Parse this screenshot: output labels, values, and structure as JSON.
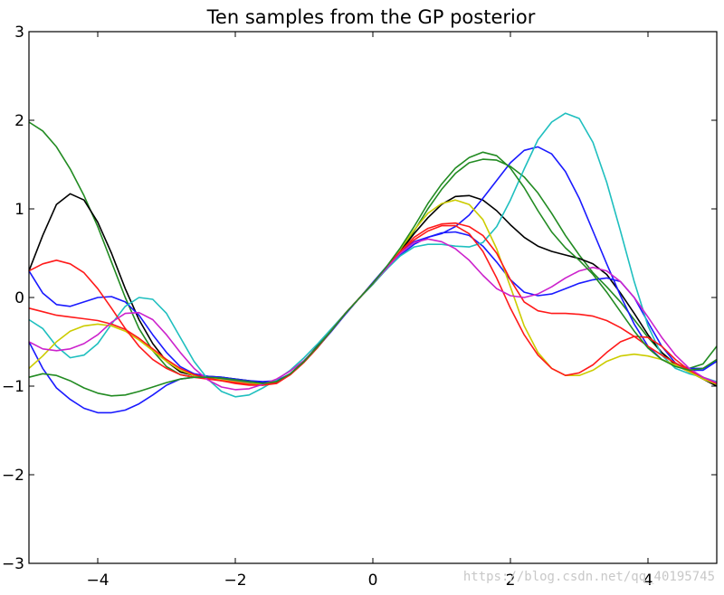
{
  "chart_data": {
    "type": "line",
    "title": "Ten samples from the GP posterior",
    "xlabel": "",
    "ylabel": "",
    "xlim": [
      -5,
      5
    ],
    "ylim": [
      -3,
      3
    ],
    "xticks": [
      -4,
      -2,
      0,
      2,
      4
    ],
    "yticks": [
      -3,
      -2,
      -1,
      0,
      1,
      2,
      3
    ],
    "xtick_labels": [
      "−4",
      "−2",
      "0",
      "2",
      "4"
    ],
    "ytick_labels": [
      "−3",
      "−2",
      "−1",
      "0",
      "1",
      "2",
      "3"
    ],
    "grid": false,
    "legend": "none",
    "x": [
      -5.0,
      -4.8,
      -4.6,
      -4.4,
      -4.2,
      -4.0,
      -3.8,
      -3.6,
      -3.4,
      -3.2,
      -3.0,
      -2.8,
      -2.6,
      -2.4,
      -2.2,
      -2.0,
      -1.8,
      -1.6,
      -1.4,
      -1.2,
      -1.0,
      -0.8,
      -0.6,
      -0.4,
      -0.2,
      0.0,
      0.2,
      0.4,
      0.6,
      0.8,
      1.0,
      1.2,
      1.4,
      1.6,
      1.8,
      2.0,
      2.2,
      2.4,
      2.6,
      2.8,
      3.0,
      3.2,
      3.4,
      3.6,
      3.8,
      4.0,
      4.2,
      4.4,
      4.6,
      4.8,
      5.0
    ],
    "series": [
      {
        "color": "#228b22",
        "values": [
          1.98,
          1.88,
          1.7,
          1.45,
          1.15,
          0.8,
          0.4,
          0.0,
          -0.35,
          -0.6,
          -0.78,
          -0.87,
          -0.9,
          -0.9,
          -0.91,
          -0.93,
          -0.95,
          -0.97,
          -0.95,
          -0.87,
          -0.73,
          -0.56,
          -0.37,
          -0.18,
          -0.01,
          0.15,
          0.32,
          0.52,
          0.75,
          1.0,
          1.22,
          1.4,
          1.52,
          1.56,
          1.55,
          1.48,
          1.36,
          1.18,
          0.95,
          0.7,
          0.48,
          0.28,
          0.12,
          -0.05,
          -0.25,
          -0.45,
          -0.62,
          -0.75,
          -0.8,
          -0.75,
          -0.55
        ]
      },
      {
        "color": "#000000",
        "values": [
          0.3,
          0.7,
          1.05,
          1.17,
          1.1,
          0.85,
          0.5,
          0.1,
          -0.25,
          -0.52,
          -0.72,
          -0.84,
          -0.88,
          -0.89,
          -0.9,
          -0.92,
          -0.94,
          -0.96,
          -0.95,
          -0.86,
          -0.72,
          -0.54,
          -0.36,
          -0.18,
          -0.01,
          0.15,
          0.33,
          0.52,
          0.72,
          0.9,
          1.05,
          1.14,
          1.15,
          1.1,
          0.98,
          0.82,
          0.68,
          0.58,
          0.52,
          0.48,
          0.44,
          0.38,
          0.26,
          0.05,
          -0.18,
          -0.42,
          -0.62,
          -0.76,
          -0.84,
          -0.92,
          -1.0
        ]
      },
      {
        "color": "#1a1aff",
        "values": [
          0.3,
          0.05,
          -0.08,
          -0.1,
          -0.05,
          0.0,
          0.01,
          -0.05,
          -0.2,
          -0.42,
          -0.62,
          -0.78,
          -0.86,
          -0.89,
          -0.9,
          -0.92,
          -0.94,
          -0.95,
          -0.94,
          -0.86,
          -0.73,
          -0.56,
          -0.38,
          -0.19,
          -0.01,
          0.16,
          0.32,
          0.48,
          0.6,
          0.68,
          0.73,
          0.74,
          0.7,
          0.58,
          0.4,
          0.2,
          0.06,
          0.02,
          0.04,
          0.1,
          0.16,
          0.2,
          0.22,
          0.18,
          0.0,
          -0.28,
          -0.55,
          -0.74,
          -0.82,
          -0.82,
          -0.72
        ]
      },
      {
        "color": "#1a1aff",
        "values": [
          -0.5,
          -0.8,
          -1.02,
          -1.15,
          -1.25,
          -1.3,
          -1.3,
          -1.27,
          -1.2,
          -1.1,
          -0.99,
          -0.92,
          -0.9,
          -0.91,
          -0.92,
          -0.94,
          -0.96,
          -0.97,
          -0.95,
          -0.86,
          -0.72,
          -0.55,
          -0.37,
          -0.19,
          -0.01,
          0.17,
          0.35,
          0.52,
          0.63,
          0.68,
          0.72,
          0.8,
          0.93,
          1.12,
          1.32,
          1.52,
          1.66,
          1.7,
          1.62,
          1.42,
          1.12,
          0.75,
          0.38,
          0.02,
          -0.3,
          -0.55,
          -0.7,
          -0.76,
          -0.8,
          -0.8,
          -0.72
        ]
      },
      {
        "color": "#1fbfbf",
        "values": [
          -0.25,
          -0.35,
          -0.55,
          -0.68,
          -0.65,
          -0.52,
          -0.3,
          -0.1,
          0.0,
          -0.02,
          -0.18,
          -0.45,
          -0.72,
          -0.92,
          -1.06,
          -1.12,
          -1.1,
          -1.02,
          -0.93,
          -0.82,
          -0.68,
          -0.52,
          -0.35,
          -0.18,
          -0.01,
          0.15,
          0.32,
          0.47,
          0.57,
          0.6,
          0.6,
          0.58,
          0.57,
          0.62,
          0.8,
          1.1,
          1.45,
          1.78,
          1.98,
          2.08,
          2.02,
          1.75,
          1.3,
          0.75,
          0.18,
          -0.32,
          -0.65,
          -0.8,
          -0.86,
          -0.9,
          -0.95
        ]
      },
      {
        "color": "#cccc00",
        "values": [
          -0.8,
          -0.66,
          -0.5,
          -0.38,
          -0.32,
          -0.3,
          -0.32,
          -0.38,
          -0.48,
          -0.6,
          -0.72,
          -0.82,
          -0.88,
          -0.91,
          -0.93,
          -0.95,
          -0.97,
          -0.98,
          -0.96,
          -0.87,
          -0.73,
          -0.56,
          -0.37,
          -0.18,
          -0.01,
          0.16,
          0.34,
          0.55,
          0.76,
          0.95,
          1.06,
          1.1,
          1.05,
          0.88,
          0.55,
          0.12,
          -0.32,
          -0.62,
          -0.8,
          -0.88,
          -0.88,
          -0.82,
          -0.72,
          -0.66,
          -0.64,
          -0.66,
          -0.7,
          -0.76,
          -0.84,
          -0.92,
          -0.98
        ]
      },
      {
        "color": "#ff1a1a",
        "values": [
          0.3,
          0.38,
          0.42,
          0.38,
          0.28,
          0.1,
          -0.12,
          -0.35,
          -0.55,
          -0.7,
          -0.8,
          -0.87,
          -0.9,
          -0.92,
          -0.94,
          -0.97,
          -0.99,
          -0.99,
          -0.96,
          -0.87,
          -0.73,
          -0.56,
          -0.37,
          -0.18,
          -0.01,
          0.16,
          0.34,
          0.52,
          0.65,
          0.75,
          0.81,
          0.81,
          0.72,
          0.52,
          0.22,
          -0.12,
          -0.42,
          -0.65,
          -0.8,
          -0.88,
          -0.85,
          -0.76,
          -0.62,
          -0.5,
          -0.44,
          -0.45,
          -0.55,
          -0.7,
          -0.82,
          -0.9,
          -0.97
        ]
      },
      {
        "color": "#ff1a1a",
        "values": [
          -0.12,
          -0.16,
          -0.2,
          -0.22,
          -0.24,
          -0.26,
          -0.3,
          -0.36,
          -0.46,
          -0.58,
          -0.7,
          -0.8,
          -0.87,
          -0.91,
          -0.94,
          -0.96,
          -0.98,
          -0.99,
          -0.97,
          -0.87,
          -0.73,
          -0.56,
          -0.37,
          -0.18,
          -0.01,
          0.16,
          0.34,
          0.52,
          0.68,
          0.78,
          0.83,
          0.84,
          0.8,
          0.7,
          0.5,
          0.2,
          -0.05,
          -0.15,
          -0.18,
          -0.18,
          -0.19,
          -0.21,
          -0.26,
          -0.34,
          -0.44,
          -0.55,
          -0.65,
          -0.74,
          -0.82,
          -0.9,
          -0.97
        ]
      },
      {
        "color": "#cc22cc",
        "values": [
          -0.5,
          -0.58,
          -0.6,
          -0.58,
          -0.52,
          -0.42,
          -0.28,
          -0.18,
          -0.17,
          -0.25,
          -0.42,
          -0.62,
          -0.8,
          -0.93,
          -1.01,
          -1.04,
          -1.03,
          -0.98,
          -0.92,
          -0.83,
          -0.71,
          -0.55,
          -0.37,
          -0.18,
          -0.01,
          0.16,
          0.33,
          0.5,
          0.62,
          0.66,
          0.63,
          0.55,
          0.42,
          0.25,
          0.1,
          0.02,
          0.0,
          0.04,
          0.12,
          0.22,
          0.3,
          0.34,
          0.3,
          0.18,
          0.0,
          -0.22,
          -0.45,
          -0.65,
          -0.8,
          -0.9,
          -0.96
        ]
      },
      {
        "color": "#228b22",
        "values": [
          -0.9,
          -0.86,
          -0.88,
          -0.94,
          -1.02,
          -1.08,
          -1.11,
          -1.1,
          -1.06,
          -1.01,
          -0.96,
          -0.92,
          -0.9,
          -0.9,
          -0.91,
          -0.93,
          -0.95,
          -0.97,
          -0.95,
          -0.86,
          -0.72,
          -0.55,
          -0.37,
          -0.18,
          -0.01,
          0.16,
          0.35,
          0.56,
          0.8,
          1.06,
          1.28,
          1.46,
          1.58,
          1.64,
          1.6,
          1.46,
          1.24,
          0.98,
          0.74,
          0.56,
          0.42,
          0.26,
          0.06,
          -0.16,
          -0.38,
          -0.57,
          -0.7,
          -0.78,
          -0.82,
          -0.8,
          -0.7
        ]
      }
    ]
  },
  "watermark": "https://blog.csdn.net/qq_40195745"
}
